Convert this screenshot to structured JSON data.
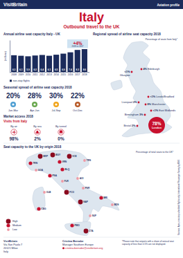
{
  "header": {
    "brand": "VisitBritain",
    "label": "Aviation profile"
  },
  "title": "Italy",
  "subtitle": "Outbound travel to the UK",
  "chart_data": {
    "type": "bar",
    "title": "Annual airline seat capacity Italy - UK",
    "ylabel": "(millions)",
    "categories": [
      "2008",
      "2009",
      "2010",
      "2011",
      "2012",
      "2013",
      "2014",
      "2015",
      "2016",
      "2017",
      "2018"
    ],
    "series": [
      {
        "name": "non-stop flights",
        "color": "#1b2b5b",
        "values": [
          6.3,
          6.1,
          5.9,
          6.2,
          6.4,
          6.1,
          6.5,
          6.9,
          7.4,
          8.3,
          8.6
        ]
      }
    ],
    "ylim": [
      0,
      12
    ],
    "data_labels": true,
    "tick_labels": "x",
    "annotation": {
      "text": "+4%",
      "subtext": "2018 vs 2017"
    }
  },
  "regional": {
    "title": "Regional spread of airline seat capacity 2018",
    "note": "Percentage of seats from Italy*",
    "airports": [
      {
        "name": "Glasgow",
        "share": "<1%"
      },
      {
        "name": "Edinburgh",
        "share": "4%"
      },
      {
        "name": "Leeds/Bradford",
        "share": "<1%"
      },
      {
        "name": "Liverpool",
        "share": "2%"
      },
      {
        "name": "Manchester",
        "share": "8%"
      },
      {
        "name": "East Midlands",
        "share": "<1%"
      },
      {
        "name": "Birmingham",
        "share": "3%"
      },
      {
        "name": "Bristol",
        "share": "2%"
      },
      {
        "name": "London",
        "share": "78%"
      }
    ]
  },
  "seasonal": {
    "title": "Seasonal spread of airline seat capacity 2018",
    "quarters": [
      {
        "share": "20%",
        "label": "Jan-Mar"
      },
      {
        "share": "28%",
        "label": "Apr-Jun"
      },
      {
        "share": "30%",
        "label": "Jul-Sep"
      },
      {
        "share": "22%",
        "label": "Oct-Dec"
      }
    ]
  },
  "market_access": {
    "title": "Market access 2018",
    "subtitle": "Visits from Italy",
    "modes": [
      {
        "label": "By air",
        "share": "98%"
      },
      {
        "label": "By sea",
        "share": "2%"
      },
      {
        "label": "By tunnel",
        "share": "0%"
      }
    ]
  },
  "origin": {
    "title": "Seat capacity to the UK by origin 2018",
    "note": "Percentage of total seats to the UK*",
    "legend": [
      "High",
      "Medium",
      "Low"
    ],
    "airports": [
      {
        "code": "TRN",
        "level": "Medium"
      },
      {
        "code": "MXP",
        "level": "High"
      },
      {
        "code": "BGY",
        "level": "High"
      },
      {
        "code": "VCE",
        "level": "High"
      },
      {
        "code": "TRS",
        "level": "Low"
      },
      {
        "code": "VRN",
        "level": "Medium"
      },
      {
        "code": "GOA",
        "level": "Low"
      },
      {
        "code": "BLQ",
        "level": "Medium"
      },
      {
        "code": "PSA",
        "level": "Medium"
      },
      {
        "code": "FLR",
        "level": "Low"
      },
      {
        "code": "AOI",
        "level": "Low"
      },
      {
        "code": "PSR",
        "level": "Low"
      },
      {
        "code": "FCO",
        "level": "High"
      },
      {
        "code": "NAP",
        "level": "High"
      },
      {
        "code": "BRI",
        "level": "Medium"
      },
      {
        "code": "BDS",
        "level": "Low"
      },
      {
        "code": "OLB",
        "level": "Low"
      },
      {
        "code": "CAG",
        "level": "Medium"
      },
      {
        "code": "PMO",
        "level": "Medium"
      },
      {
        "code": "SUF",
        "level": "Low"
      },
      {
        "code": "CTA",
        "level": "High"
      }
    ]
  },
  "footer": {
    "office": [
      "VisitBritain",
      "Via San Paolo 7",
      "20121 Milan",
      "Italy"
    ],
    "contact": [
      "Cristina Bernabe",
      "Manager Southern Europe",
      "cristina.bernabe@visitbritain.org"
    ],
    "footnote": "*Please note that airports with a share of annual seat capacity of less than 0.5% are not displayed.",
    "sources": "Sources: Apex, non-stop scheduled flights only; International Passenger Survey by ONS"
  }
}
